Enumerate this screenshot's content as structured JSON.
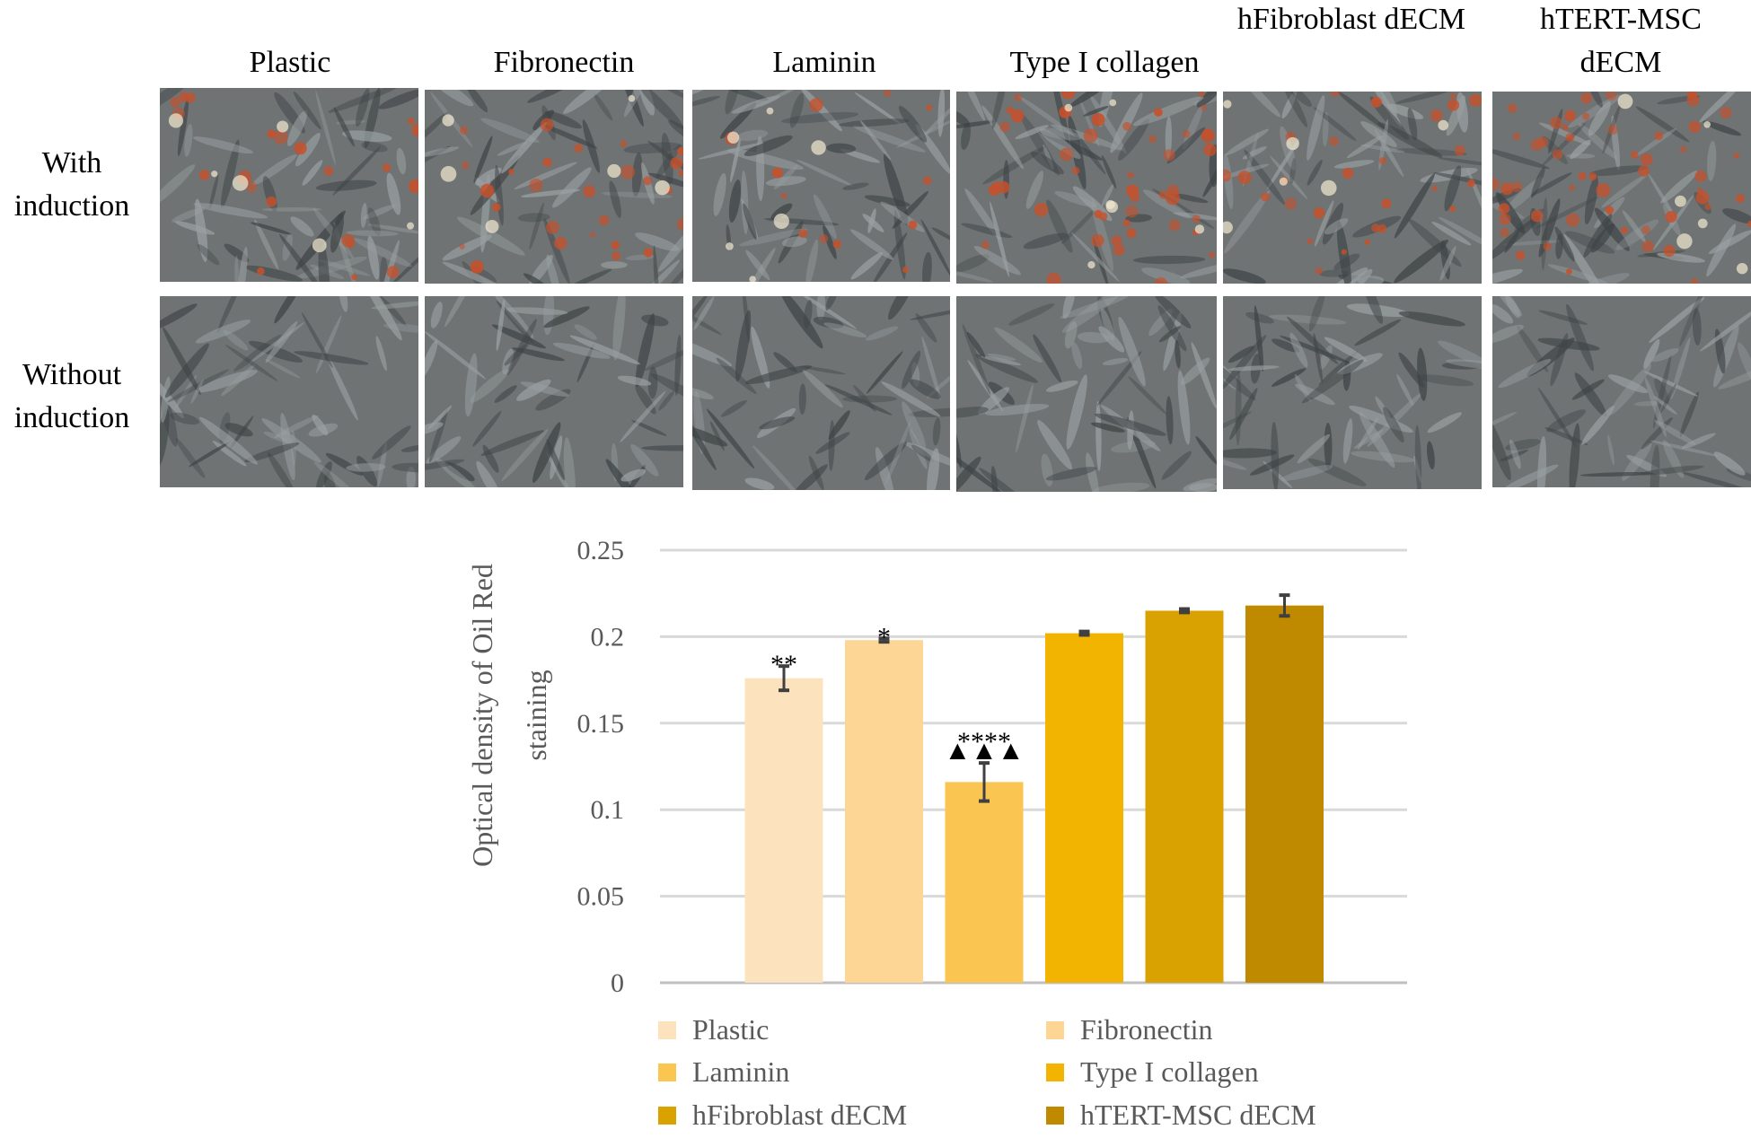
{
  "panel": {
    "columns": [
      "Plastic",
      "Fibronectin",
      "Laminin",
      "Type I collagen",
      "hFibroblast dECM",
      "hTERT-MSC dECM"
    ],
    "rows": [
      "With induction",
      "Without induction"
    ],
    "micro_palette": {
      "background": "#6f7374",
      "cell": "#9aa0a2",
      "dark": "#3f4446",
      "lipid": "#c8502a",
      "bright": "#f3ead2"
    },
    "lipid_levels": [
      [
        0.35,
        0.45,
        0.2,
        0.75,
        0.45,
        0.85
      ],
      [
        0,
        0,
        0,
        0,
        0,
        0
      ]
    ]
  },
  "chart_data": {
    "type": "bar",
    "categories": [
      "Plastic",
      "Fibronectin",
      "Laminin",
      "Type I collagen",
      "hFibroblast dECM",
      "hTERT-MSC dECM"
    ],
    "values": [
      0.176,
      0.198,
      0.116,
      0.202,
      0.215,
      0.218
    ],
    "errors": [
      0.007,
      0.001,
      0.011,
      0.001,
      0.001,
      0.006
    ],
    "colors": [
      "#fde3bd",
      "#fdd594",
      "#fbc552",
      "#f2b400",
      "#d9a200",
      "#bf8a00"
    ],
    "annotations": [
      {
        "category": "Plastic",
        "text": "**"
      },
      {
        "category": "Fibronectin",
        "text": "*"
      },
      {
        "category": "Laminin",
        "text": "****",
        "markers": "▲▲▲"
      }
    ],
    "title": "",
    "xlabel": "",
    "ylabel": "Optical density of Oil Red staining",
    "ylabel_lines": [
      "Optical density of Oil Red",
      "staining"
    ],
    "ylim": [
      0,
      0.25
    ],
    "yticks": [
      0,
      0.05,
      0.1,
      0.15,
      0.2,
      0.25
    ],
    "ytick_labels": [
      "0",
      "0.05",
      "0.1",
      "0.15",
      "0.2",
      "0.25"
    ],
    "grid": true,
    "legend_position": "bottom",
    "legend": [
      "Plastic",
      "Fibronectin",
      "Laminin",
      "Type I collagen",
      "hFibroblast dECM",
      "hTERT-MSC dECM"
    ]
  }
}
